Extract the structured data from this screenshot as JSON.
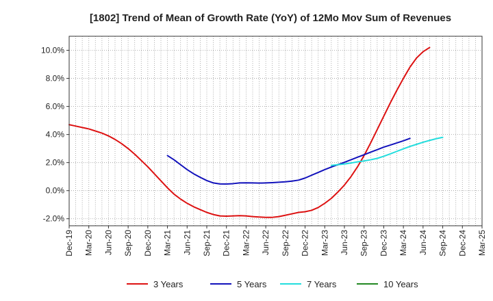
{
  "chart_data": {
    "type": "line",
    "title": "[1802]  Trend of Mean of Growth Rate (YoY) of 12Mo Mov Sum of Revenues",
    "xlabel": "",
    "ylabel": "",
    "x_tick_labels": [
      "Dec-19",
      "Mar-20",
      "Jun-20",
      "Sep-20",
      "Dec-20",
      "Mar-21",
      "Jun-21",
      "Sep-21",
      "Dec-21",
      "Mar-22",
      "Jun-22",
      "Sep-22",
      "Dec-22",
      "Mar-23",
      "Jun-23",
      "Sep-23",
      "Dec-23",
      "Mar-24",
      "Jun-24",
      "Sep-24",
      "Dec-24",
      "Mar-25"
    ],
    "y_tick_labels": [
      "10.0%",
      "8.0%",
      "6.0%",
      "4.0%",
      "2.0%",
      "0.0%",
      "-2.0%"
    ],
    "y_tick_values": [
      10,
      8,
      6,
      4,
      2,
      0,
      -2
    ],
    "ylim": [
      -2.5,
      11.0
    ],
    "x_index_range": [
      0,
      63
    ],
    "grid": true,
    "legend_position": "bottom",
    "series": [
      {
        "name": "3 Years",
        "color": "#dd1111",
        "x_start_index": 0,
        "values": [
          4.7,
          4.6,
          4.5,
          4.4,
          4.25,
          4.1,
          3.9,
          3.65,
          3.35,
          3.0,
          2.6,
          2.15,
          1.7,
          1.2,
          0.7,
          0.2,
          -0.25,
          -0.6,
          -0.9,
          -1.15,
          -1.35,
          -1.55,
          -1.7,
          -1.8,
          -1.82,
          -1.8,
          -1.78,
          -1.8,
          -1.85,
          -1.88,
          -1.9,
          -1.9,
          -1.85,
          -1.75,
          -1.65,
          -1.55,
          -1.5,
          -1.4,
          -1.2,
          -0.9,
          -0.55,
          -0.1,
          0.4,
          1.0,
          1.7,
          2.5,
          3.4,
          4.35,
          5.3,
          6.25,
          7.15,
          8.0,
          8.8,
          9.45,
          9.9,
          10.2
        ]
      },
      {
        "name": "5 Years",
        "color": "#1111bb",
        "x_start_index": 15,
        "values": [
          2.5,
          2.2,
          1.85,
          1.5,
          1.2,
          0.95,
          0.72,
          0.55,
          0.48,
          0.47,
          0.5,
          0.55,
          0.56,
          0.55,
          0.54,
          0.55,
          0.57,
          0.6,
          0.63,
          0.68,
          0.75,
          0.9,
          1.1,
          1.3,
          1.5,
          1.68,
          1.85,
          2.02,
          2.2,
          2.38,
          2.56,
          2.74,
          2.92,
          3.1,
          3.25,
          3.4,
          3.55,
          3.72
        ]
      },
      {
        "name": "7 Years",
        "color": "#22dddd",
        "x_start_index": 40,
        "values": [
          1.8,
          1.85,
          1.9,
          1.97,
          2.05,
          2.12,
          2.2,
          2.3,
          2.45,
          2.62,
          2.8,
          2.98,
          3.15,
          3.3,
          3.45,
          3.58,
          3.7,
          3.8
        ]
      },
      {
        "name": "10 Years",
        "color": "#228822",
        "x_start_index": 0,
        "values": []
      }
    ]
  }
}
